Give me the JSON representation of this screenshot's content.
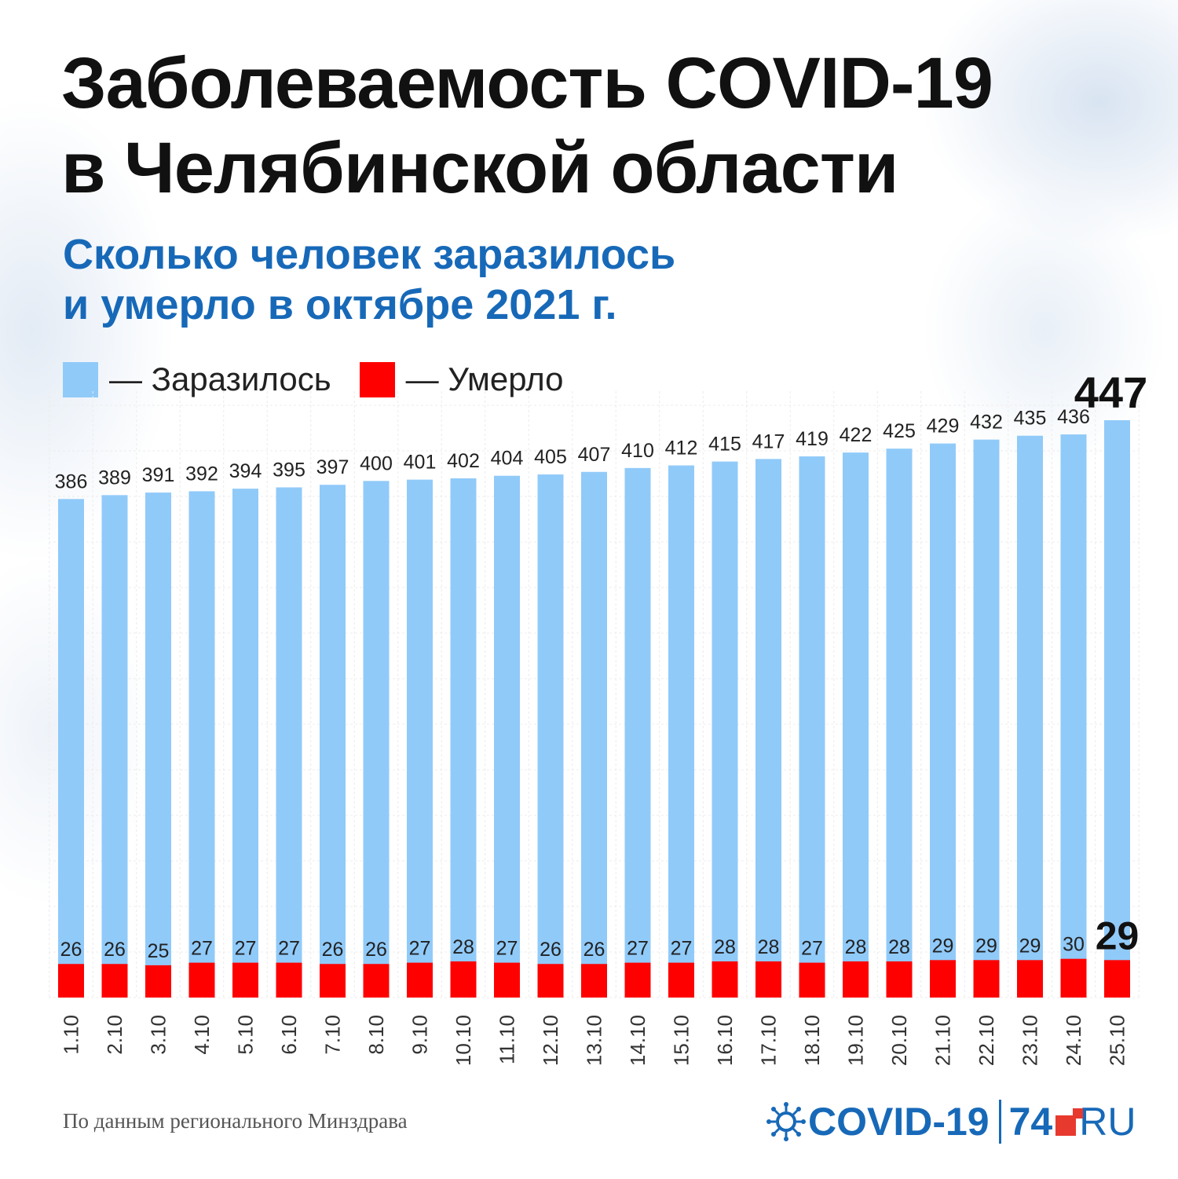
{
  "header": {
    "title_line1": "Заболеваемость COVID-19",
    "title_line2": "в Челябинской области",
    "subtitle_line1": "Сколько человек заразилось",
    "subtitle_line2": "и умерло в октябре 2021 г."
  },
  "legend": {
    "infected_label": "— Заразилось",
    "deaths_label": "— Умерло"
  },
  "colors": {
    "infected": "#90caf9",
    "deaths": "#ff0000",
    "title": "#111111",
    "subtitle": "#1769b8",
    "brand": "#1769b8",
    "brand_accent": "#e8392f"
  },
  "chart_data": {
    "type": "bar",
    "categories": [
      "1.10",
      "2.10",
      "3.10",
      "4.10",
      "5.10",
      "6.10",
      "7.10",
      "8.10",
      "9.10",
      "10.10",
      "11.10",
      "12.10",
      "13.10",
      "14.10",
      "15.10",
      "16.10",
      "17.10",
      "18.10",
      "19.10",
      "20.10",
      "21.10",
      "22.10",
      "23.10",
      "24.10",
      "25.10"
    ],
    "series": [
      {
        "name": "Заразилось",
        "values": [
          386,
          389,
          391,
          392,
          394,
          395,
          397,
          400,
          401,
          402,
          404,
          405,
          407,
          410,
          412,
          415,
          417,
          419,
          422,
          425,
          429,
          432,
          435,
          436,
          447
        ]
      },
      {
        "name": "Умерло",
        "values": [
          26,
          26,
          25,
          27,
          27,
          27,
          26,
          26,
          27,
          28,
          27,
          26,
          26,
          27,
          27,
          28,
          28,
          27,
          28,
          28,
          29,
          29,
          29,
          30,
          29
        ]
      }
    ],
    "ylim": [
      0,
      447
    ],
    "grid": true,
    "legend_position": "top-left",
    "highlight_last": true
  },
  "footer": {
    "source": "По данным регионального Минздрава",
    "logo_covid": "COVID-19",
    "logo_74": "74",
    "logo_ru": "RU"
  }
}
